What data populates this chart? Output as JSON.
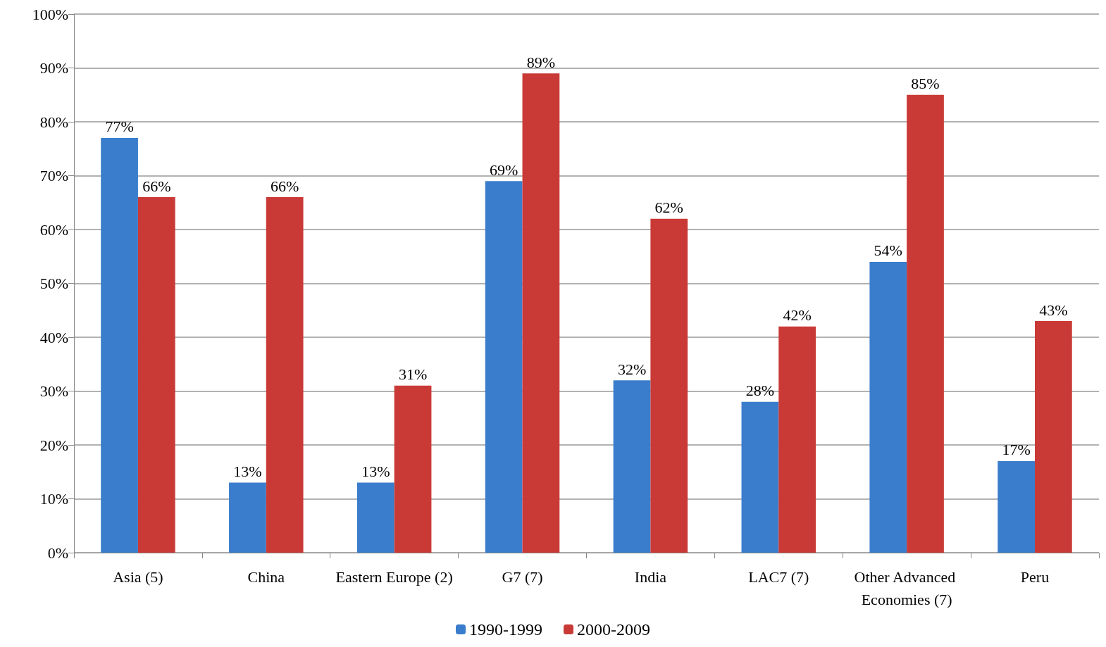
{
  "chart_data": {
    "type": "bar",
    "categories": [
      "Asia (5)",
      "China",
      "Eastern Europe (2)",
      "G7 (7)",
      "India",
      "LAC7 (7)",
      "Other Advanced Economies (7)",
      "Peru"
    ],
    "series": [
      {
        "name": "1990-1999",
        "color": "#3a7dcc",
        "values": [
          77,
          13,
          13,
          69,
          32,
          28,
          54,
          17
        ],
        "value_labels": [
          "77%",
          "13%",
          "13%",
          "69%",
          "32%",
          "28%",
          "54%",
          "17%"
        ]
      },
      {
        "name": "2000-2009",
        "color": "#c93a36",
        "values": [
          66,
          66,
          31,
          89,
          62,
          42,
          85,
          43
        ],
        "value_labels": [
          "66%",
          "66%",
          "31%",
          "89%",
          "62%",
          "42%",
          "85%",
          "43%"
        ]
      }
    ],
    "ylim": [
      0,
      100
    ],
    "yticks": [
      {
        "value": 0,
        "label": "0%"
      },
      {
        "value": 10,
        "label": "10%"
      },
      {
        "value": 20,
        "label": "20%"
      },
      {
        "value": 30,
        "label": "30%"
      },
      {
        "value": 40,
        "label": "40%"
      },
      {
        "value": 50,
        "label": "50%"
      },
      {
        "value": 60,
        "label": "60%"
      },
      {
        "value": 70,
        "label": "70%"
      },
      {
        "value": 80,
        "label": "80%"
      },
      {
        "value": 90,
        "label": "90%"
      },
      {
        "value": 100,
        "label": "100%"
      }
    ],
    "grid": "y",
    "legend": "bottom"
  }
}
